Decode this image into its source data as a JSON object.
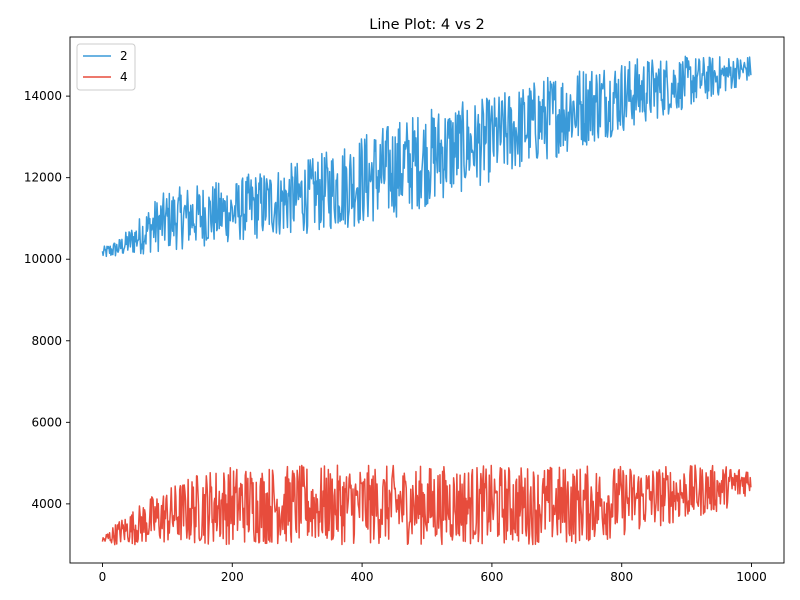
{
  "chart_data": {
    "type": "line",
    "title": "Line Plot: 4 vs 2",
    "xlabel": "",
    "ylabel": "",
    "xlim": [
      -50,
      1050
    ],
    "ylim": [
      2550,
      15450
    ],
    "x_ticks": [
      0,
      200,
      400,
      600,
      800,
      1000
    ],
    "y_ticks": [
      4000,
      6000,
      8000,
      10000,
      12000,
      14000
    ],
    "x_tick_labels": [
      "0",
      "200",
      "400",
      "600",
      "800",
      "1000"
    ],
    "y_tick_labels": [
      "4000",
      "6000",
      "8000",
      "10000",
      "12000",
      "14000"
    ],
    "grid": false,
    "legend_position": "top-left",
    "series": [
      {
        "name": "2",
        "color": "#3a9ad9",
        "x": [
          0,
          25,
          50,
          75,
          100,
          125,
          150,
          175,
          200,
          225,
          250,
          275,
          300,
          325,
          350,
          375,
          400,
          425,
          450,
          475,
          500,
          525,
          550,
          575,
          600,
          625,
          650,
          675,
          700,
          725,
          750,
          775,
          800,
          825,
          850,
          875,
          900,
          925,
          950,
          975,
          1000
        ],
        "low": [
          10000,
          10050,
          10100,
          10150,
          10200,
          10250,
          10300,
          10350,
          10400,
          10450,
          10500,
          10550,
          10600,
          10650,
          10700,
          10750,
          10800,
          10900,
          11000,
          11150,
          11300,
          11450,
          11600,
          11750,
          11900,
          12050,
          12200,
          12350,
          12500,
          12650,
          12800,
          12950,
          13100,
          13250,
          13400,
          13550,
          13700,
          13850,
          14000,
          14200,
          14400
        ],
        "high": [
          10300,
          10500,
          10900,
          11400,
          11700,
          11800,
          11850,
          11900,
          11900,
          12100,
          12200,
          12300,
          12400,
          12500,
          12700,
          12900,
          13100,
          13250,
          13400,
          13550,
          13700,
          13800,
          13850,
          13900,
          14000,
          14150,
          14300,
          14450,
          14600,
          14700,
          14800,
          14850,
          14900,
          14950,
          14950,
          14980,
          14980,
          14980,
          14990,
          14990,
          14990
        ]
      },
      {
        "name": "4",
        "color": "#e74c3c",
        "x": [
          0,
          25,
          50,
          75,
          100,
          125,
          150,
          175,
          200,
          225,
          250,
          275,
          300,
          325,
          350,
          375,
          400,
          425,
          450,
          475,
          500,
          525,
          550,
          575,
          600,
          625,
          650,
          675,
          700,
          725,
          750,
          775,
          800,
          825,
          850,
          875,
          900,
          925,
          950,
          975,
          1000
        ],
        "low": [
          3000,
          3000,
          3000,
          3000,
          3000,
          3000,
          3000,
          3000,
          3000,
          3000,
          3000,
          3000,
          3000,
          3000,
          3000,
          3000,
          3000,
          3000,
          3000,
          3000,
          3000,
          3000,
          3000,
          3000,
          3000,
          3000,
          3000,
          3000,
          3000,
          3000,
          3050,
          3100,
          3200,
          3300,
          3400,
          3500,
          3600,
          3700,
          3800,
          4000,
          4300
        ],
        "high": [
          3200,
          3600,
          3900,
          4200,
          4400,
          4600,
          4800,
          4900,
          4950,
          4950,
          4950,
          4950,
          4950,
          4950,
          4950,
          4950,
          4950,
          4950,
          4950,
          4950,
          4950,
          4950,
          4950,
          4950,
          4950,
          4950,
          4950,
          4950,
          4950,
          4950,
          4950,
          4950,
          4950,
          4950,
          4950,
          4950,
          4950,
          4950,
          4950,
          4950,
          4950
        ]
      }
    ],
    "n_points": 1000
  }
}
